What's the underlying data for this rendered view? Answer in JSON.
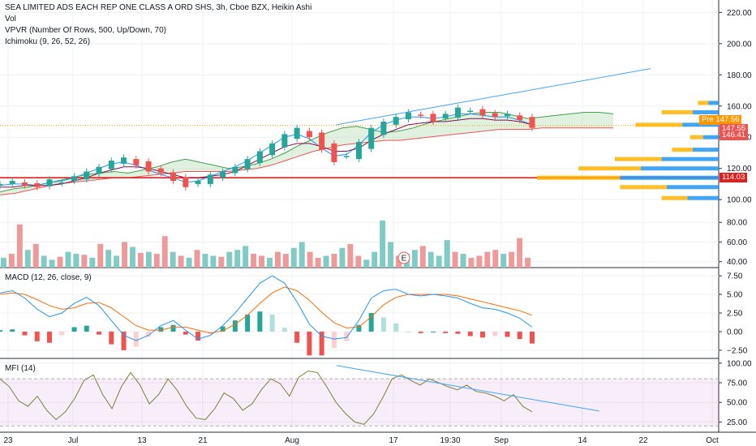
{
  "chart_data": [
    {
      "type": "line",
      "panel": "price",
      "title": "SEA LIMITED ADS EACH REP ONE CLASS A ORD SHS, 3h, Cboe BZX, Heikin Ashi",
      "indicators": [
        "Vol",
        "VPVR (Number Of Rows, 500, Up/Down, 70)",
        "Ichimoku (9, 26, 52, 26)"
      ],
      "x_tick_labels": [
        "23",
        "Jul",
        "13",
        "21",
        "Aug",
        "17",
        "19:30",
        "Sep",
        "14",
        "22",
        "Oct"
      ],
      "y_ticks": [
        100,
        120,
        140,
        160,
        180,
        200,
        220
      ],
      "ylim": [
        98,
        228
      ],
      "y_tick_labels": [
        "100.00",
        "120.00",
        "140.00",
        "160.00",
        "180.00",
        "200.00",
        "220.00"
      ],
      "price_labels": [
        {
          "label": "Pre",
          "value": "147.56",
          "color": "#ff9800"
        },
        {
          "label": "",
          "value": "147.55",
          "color": "#ef5350"
        },
        {
          "label": "",
          "value": "146.41",
          "color": "#ef5350"
        },
        {
          "label": "",
          "value": "114.03",
          "color": "#e0201c"
        }
      ],
      "horizontal_lines": [
        {
          "y": 114.03,
          "color": "#e0201c"
        },
        {
          "y": 147.56,
          "color": "#ff9800",
          "style": "dotted"
        }
      ],
      "trendline": [
        {
          "x": 0.468,
          "y": 148
        },
        {
          "x": 0.86,
          "y": 184
        }
      ],
      "close": [
        110,
        112,
        109,
        108,
        113,
        111,
        115,
        118,
        121,
        125,
        127,
        122,
        118,
        117,
        112,
        108,
        112,
        116,
        118,
        121,
        126,
        131,
        136,
        142,
        146,
        140,
        132,
        124,
        128,
        137,
        146,
        150,
        153,
        156,
        154,
        150,
        155,
        159,
        157,
        154,
        153,
        155,
        151,
        146
      ],
      "tenkan": [
        109,
        110,
        110,
        109,
        111,
        112,
        114,
        117,
        120,
        123,
        124,
        122,
        119,
        116,
        114,
        111,
        112,
        115,
        118,
        121,
        125,
        130,
        135,
        140,
        142,
        139,
        133,
        128,
        129,
        135,
        143,
        148,
        151,
        153,
        153,
        152,
        153,
        155,
        155,
        154,
        153,
        153,
        151,
        148
      ],
      "kijun": [
        108,
        108,
        109,
        109,
        109,
        110,
        112,
        114,
        117,
        119,
        121,
        121,
        120,
        118,
        116,
        114,
        114,
        115,
        116,
        118,
        122,
        126,
        130,
        134,
        136,
        136,
        134,
        131,
        131,
        133,
        138,
        142,
        145,
        148,
        149,
        150,
        150,
        151,
        152,
        152,
        151,
        151,
        150,
        148
      ],
      "span_a": [
        105,
        107,
        108,
        110,
        112,
        114,
        116,
        117,
        118,
        117,
        119,
        121,
        124,
        126,
        124,
        122,
        120,
        121,
        123,
        126,
        130,
        135,
        139,
        143,
        146,
        147,
        145,
        143,
        144,
        146,
        149,
        151,
        153,
        155,
        156,
        156,
        154,
        152,
        153,
        154,
        155,
        156,
        156,
        155
      ],
      "span_b": [
        103,
        104,
        106,
        108,
        110,
        111,
        112,
        113,
        114,
        114,
        115,
        116,
        117,
        118,
        118,
        118,
        118,
        119,
        120,
        122,
        125,
        128,
        131,
        133,
        135,
        136,
        137,
        138,
        138,
        139,
        140,
        141,
        142,
        143,
        144,
        145,
        145,
        145,
        146,
        146,
        146,
        146,
        146,
        146
      ],
      "volume_profile": {
        "price": [
          101,
          108,
          114,
          120,
          126,
          132,
          140,
          148,
          156,
          162
        ],
        "up": [
          12,
          20,
          38,
          30,
          22,
          10,
          6,
          14,
          10,
          4
        ],
        "down": [
          10,
          18,
          32,
          24,
          18,
          8,
          5,
          18,
          12,
          4
        ]
      }
    },
    {
      "type": "bar",
      "panel": "volume",
      "y_ticks": [
        40,
        60,
        80
      ],
      "ylim": [
        34,
        100
      ],
      "y_tick_labels": [
        "40.00",
        "60.00",
        "80.00"
      ],
      "annotation": "E",
      "values": [
        44,
        48,
        78,
        52,
        58,
        46,
        42,
        45,
        50,
        48,
        47,
        44,
        58,
        52,
        46,
        60,
        55,
        49,
        50,
        48,
        66,
        50,
        46,
        44,
        52,
        48,
        46,
        45,
        50,
        52,
        56,
        48,
        46,
        44,
        50,
        48,
        54,
        60,
        50,
        44,
        46,
        48,
        54,
        58,
        46,
        42,
        50,
        82,
        60,
        46,
        48,
        52,
        56,
        50,
        46,
        62,
        50,
        48,
        44,
        46,
        50,
        52,
        48,
        50,
        64,
        44
      ],
      "up": [
        1,
        0,
        0,
        1,
        0,
        1,
        1,
        0,
        1,
        1,
        0,
        1,
        0,
        1,
        1,
        0,
        1,
        0,
        1,
        0,
        0,
        1,
        0,
        1,
        0,
        1,
        1,
        0,
        1,
        1,
        1,
        0,
        0,
        1,
        0,
        0,
        1,
        1,
        0,
        0,
        1,
        0,
        1,
        0,
        0,
        1,
        1,
        1,
        1,
        0,
        1,
        1,
        0,
        1,
        1,
        1,
        0,
        1,
        0,
        0,
        0,
        0,
        1,
        0,
        0,
        0
      ]
    },
    {
      "type": "line",
      "panel": "macd",
      "title": "MACD (12, 26, close, 9)",
      "y_ticks": [
        -2.5,
        0,
        2.5,
        5,
        7.5
      ],
      "ylim": [
        -3.6,
        8.6
      ],
      "y_tick_labels": [
        "−2.50",
        "0.00",
        "2.50",
        "5.00",
        "7.50"
      ],
      "macd": [
        5.2,
        5.5,
        4.5,
        3.0,
        2.0,
        2.5,
        3.8,
        4.6,
        3.5,
        1.5,
        -0.5,
        -1.2,
        -0.5,
        0.8,
        1.5,
        0.2,
        -1.0,
        -0.5,
        0.8,
        2.5,
        4.5,
        6.5,
        7.5,
        6.5,
        4.0,
        1.0,
        -0.6,
        -1.0,
        -0.8,
        1.5,
        4.5,
        5.5,
        5.7,
        5.0,
        4.8,
        5.0,
        4.8,
        4.5,
        3.8,
        3.2,
        3.0,
        2.5,
        1.8,
        0.6
      ],
      "signal": [
        5.0,
        5.2,
        5.0,
        4.3,
        3.5,
        3.0,
        3.2,
        3.8,
        3.9,
        3.2,
        2.0,
        0.8,
        0.2,
        0.2,
        0.6,
        0.6,
        0.2,
        -0.2,
        0.1,
        1.0,
        2.2,
        3.8,
        5.2,
        6.0,
        5.5,
        4.2,
        2.6,
        1.2,
        0.5,
        0.6,
        2.0,
        3.6,
        4.6,
        5.0,
        5.0,
        5.0,
        5.0,
        4.8,
        4.4,
        4.0,
        3.6,
        3.2,
        2.8,
        2.2
      ],
      "histogram": [
        0.2,
        0.3,
        -0.5,
        -1.3,
        -1.5,
        -0.5,
        0.6,
        0.8,
        -0.4,
        -1.7,
        -2.5,
        -2.0,
        -0.7,
        0.6,
        0.9,
        -0.4,
        -1.2,
        -0.3,
        0.7,
        1.5,
        2.3,
        2.7,
        2.3,
        0.5,
        -1.5,
        -3.2,
        -3.2,
        -2.2,
        -1.3,
        0.9,
        2.5,
        1.9,
        1.1,
        0.0,
        -0.2,
        0.0,
        -0.2,
        -0.3,
        -0.6,
        -0.8,
        -0.6,
        -0.7,
        -1.0,
        -1.6
      ]
    },
    {
      "type": "line",
      "panel": "mfi",
      "title": "MFI (14)",
      "y_ticks": [
        25,
        50,
        75,
        100
      ],
      "ylim": [
        12,
        106
      ],
      "y_tick_labels": [
        "25.00",
        "50.00",
        "75.00",
        "100.00"
      ],
      "band": [
        20,
        80
      ],
      "trendline": [
        {
          "x": 0.468,
          "y": 97
        },
        {
          "x": 0.8,
          "y": 39
        }
      ],
      "values": [
        80,
        70,
        52,
        45,
        58,
        40,
        28,
        38,
        55,
        78,
        85,
        60,
        42,
        70,
        88,
        72,
        48,
        60,
        80,
        65,
        45,
        30,
        28,
        42,
        62,
        55,
        40,
        48,
        66,
        80,
        74,
        58,
        82,
        90,
        88,
        70,
        50,
        36,
        25,
        22,
        35,
        56,
        80,
        85,
        78,
        72,
        80,
        75,
        70,
        66,
        72,
        64,
        62,
        58,
        52,
        60,
        45,
        38
      ]
    }
  ]
}
